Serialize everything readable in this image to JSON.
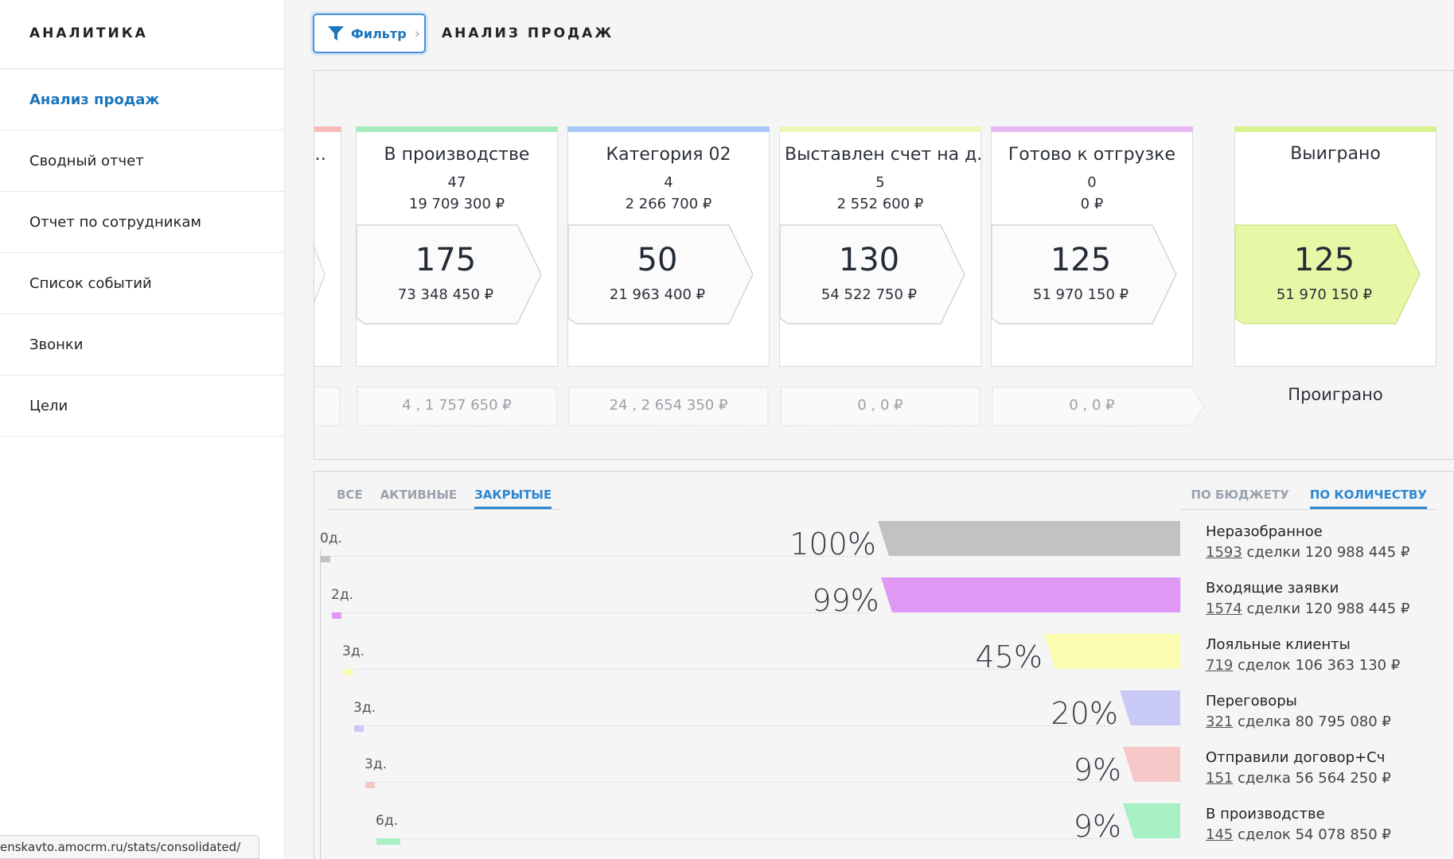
{
  "sidebar": {
    "title": "АНАЛИТИКА",
    "items": [
      {
        "label": "Анализ продаж",
        "active": true
      },
      {
        "label": "Сводный отчет"
      },
      {
        "label": "Отчет по сотрудникам"
      },
      {
        "label": "Список событий"
      },
      {
        "label": "Звонки"
      },
      {
        "label": "Цели"
      }
    ]
  },
  "status_url": "enskavto.amocrm.ru/stats/consolidated/",
  "header": {
    "filter_label": "Фильтр",
    "page_title": "АНАЛИЗ ПРОДАЖ"
  },
  "pipeline": {
    "partial_stage": {
      "name": "…",
      "color": "#f6bdbd"
    },
    "stages": [
      {
        "name": "В производстве",
        "count": "47",
        "sum": "19 709 300 ₽",
        "total": "175",
        "total_sum": "73 348 450 ₽",
        "lost": "4 , 1 757 650 ₽",
        "color": "#a6ebbd"
      },
      {
        "name": "Категория 02",
        "count": "4",
        "sum": "2 266 700 ₽",
        "total": "50",
        "total_sum": "21 963 400 ₽",
        "lost": "24 , 2 654 350 ₽",
        "color": "#a8c8f5"
      },
      {
        "name": "Выставлен счет на д...",
        "count": "5",
        "sum": "2 552 600 ₽",
        "total": "130",
        "total_sum": "54 522 750 ₽",
        "lost": "0 , 0 ₽",
        "color": "#ecf6b9"
      },
      {
        "name": "Готово к отгрузке",
        "count": "0",
        "sum": "0 ₽",
        "total": "125",
        "total_sum": "51 970 150 ₽",
        "lost": "0 , 0 ₽",
        "color": "#e8b9f3"
      }
    ],
    "won": {
      "title": "Выиграно",
      "total": "125",
      "total_sum": "51 970 150 ₽",
      "color": "#d5f28e",
      "fill": "#e6f7a6"
    },
    "lost_title": "Проиграно"
  },
  "funnel": {
    "tabs": [
      {
        "label": "ВСЕ"
      },
      {
        "label": "АКТИВНЫЕ"
      },
      {
        "label": "ЗАКРЫТЫЕ",
        "active": true
      }
    ],
    "modes": [
      {
        "label": "ПО БЮДЖЕТУ"
      },
      {
        "label": "ПО КОЛИЧЕСТВУ",
        "active": true
      }
    ],
    "rows": [
      {
        "pct": "100%",
        "value": 100,
        "days": "0д.",
        "name": "Неразобранное",
        "deals": "1593",
        "deals_word": "сделки",
        "amount": "120 988 445 ₽",
        "color": "#c2c2c2"
      },
      {
        "pct": "99%",
        "value": 99,
        "days": "2д.",
        "name": "Входящие заявки",
        "deals": "1574",
        "deals_word": "сделки",
        "amount": "120 988 445 ₽",
        "color": "#df99f5"
      },
      {
        "pct": "45%",
        "value": 45,
        "days": "3д.",
        "name": "Лояльные клиенты",
        "deals": "719",
        "deals_word": "сделок",
        "amount": "106 363 130 ₽",
        "color": "#fbfcb0"
      },
      {
        "pct": "20%",
        "value": 20,
        "days": "3д.",
        "name": "Переговоры",
        "deals": "321",
        "deals_word": "сделка",
        "amount": "80 795 080 ₽",
        "color": "#c9c9f7"
      },
      {
        "pct": "9%",
        "value": 9,
        "days": "3д.",
        "name": "Отправили договор+Счет",
        "deals": "151",
        "deals_word": "сделка",
        "amount": "56 564 250 ₽",
        "color": "#f5c7c7"
      },
      {
        "pct": "9%",
        "value": 9,
        "days": "6д.",
        "name": "В производстве",
        "deals": "145",
        "deals_word": "сделок",
        "amount": "54 078 850 ₽",
        "color": "#a6f0c4"
      }
    ]
  }
}
